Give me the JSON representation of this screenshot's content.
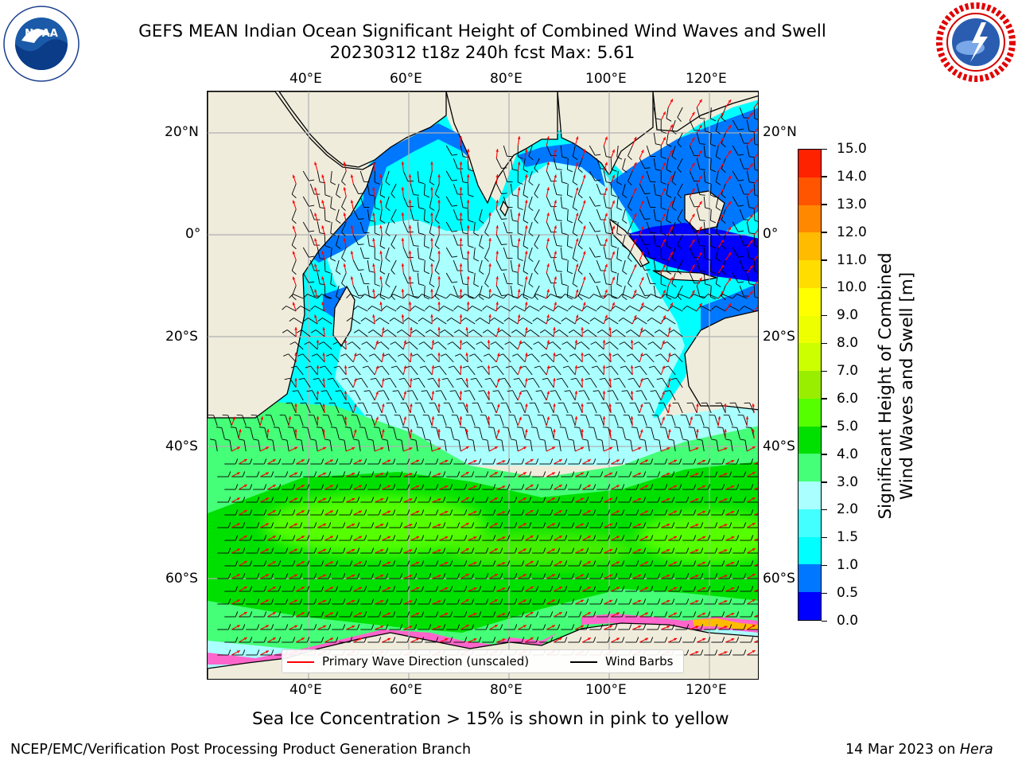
{
  "header": {
    "title_line1": "GEFS MEAN Indian Ocean Significant Height of Combined Wind Waves and Swell",
    "title_line2": "20230312 t18z 240h fcst   Max: 5.61"
  },
  "logos": {
    "noara_left": {
      "text": "NOAA",
      "ring_text": "NATIONAL OCEANIC AND ATMOSPHERIC ADMINISTRATION · U.S. DEPARTMENT OF COMMERCE"
    },
    "nws_right": {
      "ring_text": "NATIONAL WEATHER SERVICE"
    }
  },
  "map": {
    "lon_ticks": [
      "40°E",
      "60°E",
      "80°E",
      "100°E",
      "120°E"
    ],
    "lat_ticks": [
      "20°N",
      "0°",
      "20°S",
      "40°S",
      "60°S"
    ],
    "legend": {
      "wave_direction": "Primary Wave Direction (unscaled)",
      "wind_barbs": "Wind Barbs"
    },
    "colors": {
      "land": "#efecdc",
      "wave_arrow": "#ff0000",
      "wind_barb": "#000000",
      "sea_ice": "#ff66cc"
    }
  },
  "colorbar": {
    "label_line1": "Significant Height of Combined",
    "label_line2": "Wind Waves and Swell [m]",
    "ticks": [
      "0.0",
      "0.5",
      "1.0",
      "1.5",
      "2.0",
      "3.0",
      "4.0",
      "5.0",
      "6.0",
      "7.0",
      "8.0",
      "9.0",
      "10.0",
      "11.0",
      "12.0",
      "13.0",
      "14.0",
      "15.0"
    ],
    "colors": [
      "#0000ff",
      "#0077ff",
      "#00ffff",
      "#44ffff",
      "#aaffff",
      "#44ff77",
      "#00e000",
      "#55ff00",
      "#99ee00",
      "#ccff00",
      "#eeff00",
      "#ffff00",
      "#ffdd00",
      "#ffbb00",
      "#ff8800",
      "#ff5500",
      "#ff2200"
    ]
  },
  "caption": "Sea Ice Concentration > 15% is shown in pink to yellow",
  "footer": {
    "left": "NCEP/EMC/Verification Post Processing Product Generation Branch",
    "right_date": "14 Mar 2023 on",
    "right_host": "Hera"
  }
}
